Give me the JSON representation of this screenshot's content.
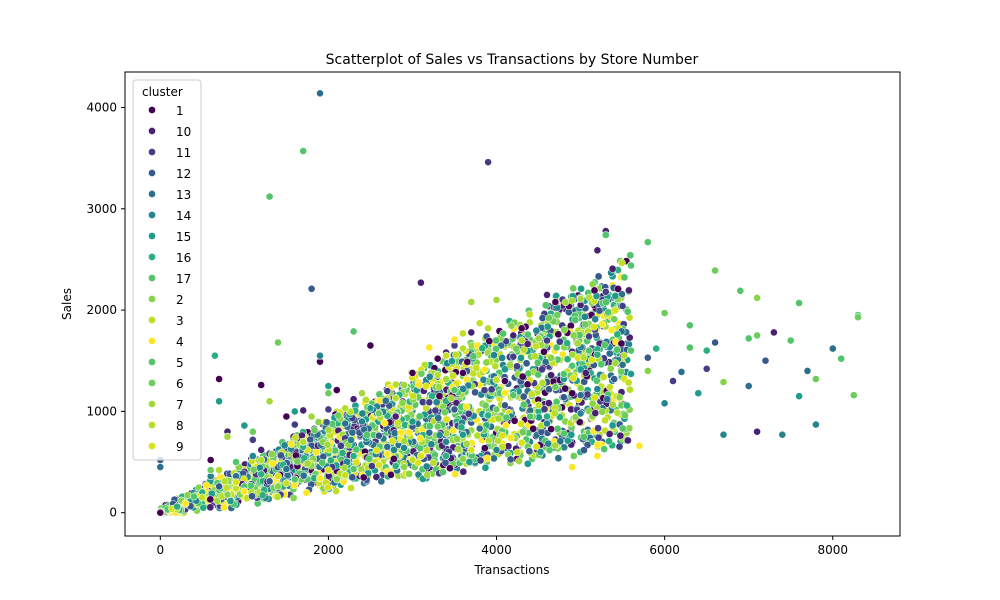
{
  "chart_data": {
    "type": "scatter",
    "title": "Scatterplot of Sales vs Transactions by Store Number",
    "xlabel": "Transactions",
    "ylabel": "Sales",
    "xlim": [
      -420,
      8800
    ],
    "ylim": [
      -230,
      4350
    ],
    "xticks": [
      0,
      2000,
      4000,
      6000,
      8000
    ],
    "yticks": [
      0,
      1000,
      2000,
      3000,
      4000
    ],
    "grid": false,
    "legend": {
      "title": "cluster",
      "placement": "upper-left",
      "entries": [
        {
          "label": "1",
          "color": "#440154"
        },
        {
          "label": "10",
          "color": "#482173"
        },
        {
          "label": "11",
          "color": "#433e85"
        },
        {
          "label": "12",
          "color": "#38598c"
        },
        {
          "label": "13",
          "color": "#2d708e"
        },
        {
          "label": "14",
          "color": "#25858e"
        },
        {
          "label": "15",
          "color": "#1e9b8a"
        },
        {
          "label": "16",
          "color": "#2ab07f"
        },
        {
          "label": "17",
          "color": "#52c569"
        },
        {
          "label": "2",
          "color": "#86d549"
        },
        {
          "label": "3",
          "color": "#c2df23"
        },
        {
          "label": "4",
          "color": "#fde725"
        },
        {
          "label": "5",
          "color": "#52c569"
        },
        {
          "label": "6",
          "color": "#6ccd5a"
        },
        {
          "label": "7",
          "color": "#a2d93a"
        },
        {
          "label": "8",
          "color": "#b5de2b"
        },
        {
          "label": "9",
          "color": "#d8e219"
        }
      ]
    },
    "series": [
      {
        "name": "1",
        "color": "#440154",
        "points": [
          [
            0,
            0
          ],
          [
            600,
            520
          ],
          [
            700,
            1320
          ],
          [
            1200,
            1260
          ],
          [
            1500,
            950
          ],
          [
            1900,
            1490
          ],
          [
            2100,
            1210
          ],
          [
            2500,
            1650
          ],
          [
            3000,
            1380
          ],
          [
            3300,
            1520
          ],
          [
            3600,
            1380
          ],
          [
            4100,
            1300
          ],
          [
            4300,
            1820
          ],
          [
            4700,
            2080
          ]
        ]
      },
      {
        "name": "10",
        "color": "#482173",
        "points": [
          [
            800,
            800
          ],
          [
            1200,
            620
          ],
          [
            1700,
            1010
          ],
          [
            2300,
            1120
          ],
          [
            2800,
            950
          ],
          [
            3100,
            2270
          ],
          [
            3400,
            1580
          ],
          [
            3700,
            1780
          ],
          [
            4200,
            1750
          ],
          [
            4600,
            2150
          ],
          [
            5000,
            2050
          ],
          [
            5200,
            2590
          ],
          [
            5300,
            2780
          ],
          [
            7100,
            800
          ],
          [
            7300,
            1780
          ]
        ]
      },
      {
        "name": "11",
        "color": "#433e85",
        "points": [
          [
            1100,
            720
          ],
          [
            1600,
            870
          ],
          [
            2000,
            1020
          ],
          [
            2700,
            1200
          ],
          [
            3200,
            1090
          ],
          [
            3500,
            1650
          ],
          [
            3900,
            3460
          ],
          [
            4200,
            1540
          ],
          [
            4600,
            1700
          ],
          [
            5100,
            1740
          ],
          [
            5300,
            2180
          ],
          [
            5500,
            2040
          ],
          [
            6100,
            1300
          ],
          [
            6500,
            1420
          ]
        ]
      },
      {
        "name": "12",
        "color": "#38598c",
        "points": [
          [
            0,
            520
          ],
          [
            700,
            260
          ],
          [
            1300,
            310
          ],
          [
            1800,
            2210
          ],
          [
            2600,
            760
          ],
          [
            3000,
            850
          ],
          [
            3500,
            1020
          ],
          [
            4100,
            1060
          ],
          [
            4800,
            1140
          ],
          [
            5400,
            1320
          ],
          [
            5800,
            1530
          ],
          [
            6600,
            1680
          ],
          [
            7200,
            1500
          ]
        ]
      },
      {
        "name": "13",
        "color": "#2d708e",
        "points": [
          [
            0,
            450
          ],
          [
            900,
            360
          ],
          [
            1500,
            430
          ],
          [
            1900,
            4140
          ],
          [
            2200,
            880
          ],
          [
            2700,
            650
          ],
          [
            3200,
            790
          ],
          [
            3800,
            830
          ],
          [
            4400,
            1010
          ],
          [
            5000,
            1160
          ],
          [
            5500,
            1460
          ],
          [
            6200,
            1390
          ],
          [
            7000,
            1250
          ],
          [
            7700,
            1400
          ],
          [
            8000,
            1620
          ]
        ]
      },
      {
        "name": "14",
        "color": "#25858e",
        "points": [
          [
            600,
            360
          ],
          [
            1100,
            560
          ],
          [
            1900,
            1550
          ],
          [
            2400,
            900
          ],
          [
            2900,
            640
          ],
          [
            3400,
            700
          ],
          [
            4000,
            620
          ],
          [
            4600,
            880
          ],
          [
            5000,
            980
          ],
          [
            5200,
            1220
          ],
          [
            6000,
            1080
          ],
          [
            6700,
            770
          ],
          [
            7400,
            770
          ],
          [
            7800,
            870
          ]
        ]
      },
      {
        "name": "15",
        "color": "#1e9b8a",
        "points": [
          [
            700,
            1100
          ],
          [
            1000,
            860
          ],
          [
            1600,
            1000
          ],
          [
            2000,
            1250
          ],
          [
            2500,
            1030
          ],
          [
            3000,
            900
          ],
          [
            3600,
            770
          ],
          [
            4200,
            1190
          ],
          [
            4800,
            1320
          ],
          [
            5600,
            1370
          ],
          [
            6400,
            1180
          ],
          [
            7600,
            1150
          ]
        ]
      },
      {
        "name": "16",
        "color": "#2ab07f",
        "points": [
          [
            200,
            60
          ],
          [
            500,
            200
          ],
          [
            650,
            1550
          ],
          [
            1200,
            380
          ],
          [
            1700,
            650
          ],
          [
            2300,
            560
          ],
          [
            2800,
            460
          ],
          [
            3400,
            560
          ],
          [
            3900,
            960
          ],
          [
            4600,
            950
          ],
          [
            5200,
            1560
          ],
          [
            5900,
            1620
          ],
          [
            6500,
            1600
          ]
        ]
      },
      {
        "name": "17",
        "color": "#52c569",
        "points": [
          [
            400,
            160
          ],
          [
            1000,
            260
          ],
          [
            1600,
            330
          ],
          [
            2300,
            430
          ],
          [
            3000,
            530
          ],
          [
            3700,
            620
          ],
          [
            4400,
            950
          ],
          [
            4900,
            1450
          ],
          [
            5600,
            1600
          ],
          [
            6300,
            1630
          ],
          [
            7000,
            1720
          ],
          [
            7500,
            1700
          ]
        ]
      },
      {
        "name": "2",
        "color": "#86d549",
        "points": [
          [
            250,
            120
          ],
          [
            800,
            180
          ],
          [
            1400,
            260
          ],
          [
            2100,
            330
          ],
          [
            2900,
            450
          ],
          [
            3600,
            530
          ],
          [
            4300,
            680
          ],
          [
            5000,
            1230
          ],
          [
            5800,
            1400
          ],
          [
            6700,
            1290
          ],
          [
            7100,
            2120
          ]
        ]
      },
      {
        "name": "3",
        "color": "#c2df23",
        "points": [
          [
            500,
            150
          ],
          [
            900,
            240
          ],
          [
            1500,
            290
          ],
          [
            2200,
            370
          ],
          [
            3000,
            520
          ],
          [
            3400,
            1550
          ],
          [
            3600,
            1770
          ],
          [
            3800,
            1870
          ],
          [
            4000,
            1310
          ],
          [
            4500,
            1060
          ]
        ]
      },
      {
        "name": "4",
        "color": "#fde725",
        "points": [
          [
            300,
            90
          ],
          [
            1000,
            210
          ],
          [
            1900,
            340
          ],
          [
            2700,
            580
          ],
          [
            3200,
            1630
          ],
          [
            3500,
            1710
          ],
          [
            4100,
            1180
          ],
          [
            4900,
            450
          ],
          [
            5200,
            560
          ],
          [
            5700,
            660
          ]
        ]
      },
      {
        "name": "5",
        "color": "#52c569",
        "points": [
          [
            900,
            500
          ],
          [
            1300,
            3120
          ],
          [
            1700,
            3570
          ],
          [
            2300,
            1790
          ],
          [
            3500,
            1210
          ],
          [
            4200,
            1160
          ],
          [
            4800,
            1370
          ],
          [
            5100,
            1600
          ],
          [
            5300,
            2740
          ],
          [
            5600,
            2440
          ],
          [
            5800,
            2670
          ],
          [
            6300,
            1850
          ],
          [
            6900,
            2190
          ],
          [
            7600,
            2070
          ],
          [
            8100,
            1520
          ],
          [
            8300,
            1950
          ]
        ]
      },
      {
        "name": "6",
        "color": "#6ccd5a",
        "points": [
          [
            600,
            420
          ],
          [
            1100,
            800
          ],
          [
            1400,
            1680
          ],
          [
            2000,
            1180
          ],
          [
            2600,
            980
          ],
          [
            3300,
            850
          ],
          [
            4000,
            1020
          ],
          [
            4700,
            1240
          ],
          [
            5400,
            1910
          ],
          [
            6000,
            1970
          ],
          [
            6600,
            2390
          ],
          [
            7100,
            1750
          ],
          [
            7800,
            1320
          ],
          [
            8300,
            1930
          ],
          [
            8250,
            1160
          ]
        ]
      },
      {
        "name": "7",
        "color": "#a2d93a",
        "points": [
          [
            800,
            750
          ],
          [
            1300,
            1100
          ],
          [
            1800,
            950
          ],
          [
            2400,
            1180
          ],
          [
            2900,
            1260
          ],
          [
            3400,
            1320
          ],
          [
            3700,
            2080
          ],
          [
            4000,
            2100
          ],
          [
            4500,
            1720
          ],
          [
            5000,
            2110
          ]
        ]
      },
      {
        "name": "8",
        "color": "#b5de2b",
        "points": [
          [
            700,
            420
          ],
          [
            1200,
            520
          ],
          [
            1700,
            700
          ],
          [
            2200,
            1030
          ],
          [
            2800,
            1130
          ],
          [
            3300,
            1360
          ],
          [
            3600,
            1620
          ],
          [
            3900,
            1820
          ],
          [
            4300,
            1700
          ]
        ]
      },
      {
        "name": "9",
        "color": "#d8e219",
        "points": [
          [
            900,
            300
          ],
          [
            1400,
            360
          ],
          [
            2000,
            420
          ],
          [
            2600,
            470
          ],
          [
            3100,
            560
          ],
          [
            3700,
            620
          ],
          [
            4300,
            690
          ]
        ]
      }
    ]
  }
}
